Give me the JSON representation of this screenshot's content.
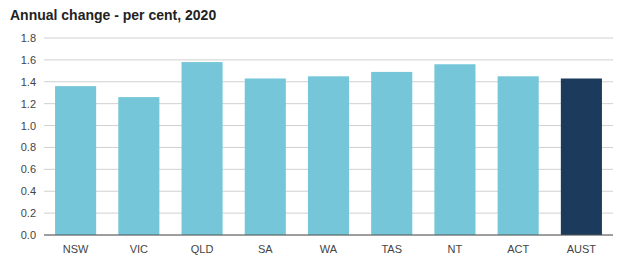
{
  "chart_data": {
    "type": "bar",
    "title": "Annual change - per cent, 2020",
    "categories": [
      "NSW",
      "VIC",
      "QLD",
      "SA",
      "WA",
      "TAS",
      "NT",
      "ACT",
      "AUST"
    ],
    "values": [
      1.36,
      1.26,
      1.58,
      1.43,
      1.45,
      1.49,
      1.56,
      1.45,
      1.43
    ],
    "colors": [
      "#74C6D8",
      "#74C6D8",
      "#74C6D8",
      "#74C6D8",
      "#74C6D8",
      "#74C6D8",
      "#74C6D8",
      "#74C6D8",
      "#1B3A5C"
    ],
    "ylim": [
      0,
      1.8
    ],
    "yticks": [
      {
        "value": 0,
        "label": "0.0"
      },
      0.2,
      0.4,
      0.6,
      0.8,
      {
        "value": 1,
        "label": "1.0"
      },
      1.2,
      1.4,
      1.6,
      1.8
    ],
    "grid": true
  }
}
